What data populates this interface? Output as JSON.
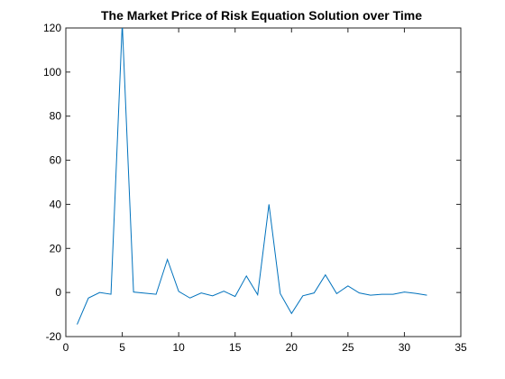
{
  "chart_data": {
    "type": "line",
    "title": "The Market Price of Risk Equation Solution over Time",
    "xlabel": "",
    "ylabel": "",
    "xlim": [
      0,
      35
    ],
    "ylim": [
      -20,
      120
    ],
    "xticks": [
      0,
      5,
      10,
      15,
      20,
      25,
      30,
      35
    ],
    "yticks": [
      -20,
      0,
      20,
      40,
      60,
      80,
      100,
      120
    ],
    "grid": false,
    "series": [
      {
        "color": "#0072BD",
        "x": [
          1,
          2,
          3,
          4,
          5,
          6,
          7,
          8,
          9,
          10,
          11,
          12,
          13,
          14,
          15,
          16,
          17,
          18,
          19,
          20,
          21,
          22,
          23,
          24,
          25,
          26,
          27,
          28,
          29,
          30,
          31,
          32
        ],
        "y": [
          -14.5,
          -2.5,
          0,
          -0.8,
          122,
          0.2,
          -0.3,
          -0.8,
          15,
          0.5,
          -2.5,
          -0.2,
          -1.5,
          0.6,
          -1.8,
          7.5,
          -1,
          40,
          -0.5,
          -9.5,
          -1.5,
          -0.2,
          8,
          -0.5,
          3,
          -0.2,
          -1.2,
          -0.8,
          -0.8,
          0.2,
          -0.4,
          -1.2
        ]
      }
    ]
  }
}
